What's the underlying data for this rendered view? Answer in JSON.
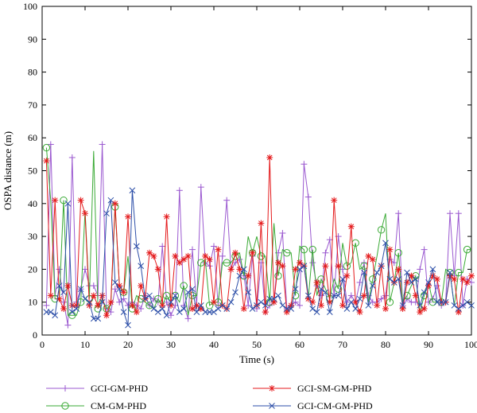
{
  "chart_data": {
    "type": "line",
    "title": "",
    "xlabel": "Time (s)",
    "ylabel": "OSPA distance (m)",
    "xlim": [
      0,
      100
    ],
    "ylim": [
      0,
      100
    ],
    "xticks": [
      0,
      10,
      20,
      30,
      40,
      50,
      60,
      70,
      80,
      90,
      100
    ],
    "yticks": [
      0,
      10,
      20,
      30,
      40,
      50,
      60,
      70,
      80,
      90,
      100
    ],
    "grid": false,
    "legend_position": "bottom",
    "series": [
      {
        "name": "GCI-GM-PHD",
        "color": "#9b59d0",
        "marker": "plus",
        "values": [
          9,
          58,
          12,
          20,
          10,
          3,
          54,
          10,
          14,
          20,
          15,
          15,
          12,
          58,
          8,
          7,
          14,
          10,
          11,
          9,
          10,
          9,
          8,
          12,
          9,
          11,
          10,
          27,
          10,
          6,
          9,
          44,
          9,
          5,
          26,
          9,
          45,
          22,
          21,
          27,
          9,
          24,
          41,
          20,
          22,
          23,
          18,
          9,
          24,
          8,
          22,
          7,
          9,
          10,
          25,
          31,
          8,
          9,
          10,
          9,
          52,
          42,
          22,
          15,
          12,
          25,
          29,
          12,
          30,
          20,
          10,
          12,
          10,
          16,
          22,
          12,
          10,
          10,
          11,
          12,
          23,
          22,
          37,
          9,
          11,
          10,
          10,
          20,
          26,
          10,
          11,
          15,
          9,
          10,
          37,
          18,
          37,
          9,
          17,
          16
        ]
      },
      {
        "name": "CM-GM-PHD",
        "color": "#3aaa35",
        "marker": "circle",
        "values": [
          57,
          41,
          11,
          11,
          41,
          6,
          6,
          6,
          10,
          38,
          11,
          56,
          8,
          11,
          8,
          9,
          39,
          15,
          13,
          24,
          8,
          12,
          11,
          10,
          9,
          8,
          11,
          9,
          12,
          10,
          12,
          10,
          15,
          6,
          12,
          12,
          22,
          23,
          9,
          10,
          10,
          22,
          22,
          22,
          24,
          25,
          18,
          30,
          25,
          30,
          24,
          24,
          10,
          34,
          18,
          26,
          25,
          25,
          12,
          27,
          26,
          11,
          26,
          12,
          17,
          14,
          11,
          17,
          14,
          28,
          21,
          22,
          28,
          20,
          21,
          10,
          17,
          24,
          32,
          37,
          10,
          16,
          25,
          10,
          12,
          15,
          18,
          7,
          12,
          16,
          10,
          10,
          10,
          20,
          19,
          9,
          19,
          19,
          26,
          26
        ]
      },
      {
        "name": "GCI-SM-GM-PHD",
        "color": "#e41a1c",
        "marker": "asterisk",
        "values": [
          53,
          12,
          41,
          11,
          8,
          15,
          9,
          9,
          41,
          37,
          9,
          12,
          9,
          12,
          6,
          10,
          40,
          15,
          13,
          36,
          9,
          7,
          15,
          11,
          25,
          24,
          20,
          9,
          36,
          9,
          24,
          22,
          23,
          24,
          8,
          9,
          8,
          24,
          23,
          10,
          26,
          9,
          8,
          20,
          25,
          20,
          8,
          18,
          25,
          9,
          34,
          7,
          54,
          10,
          22,
          21,
          7,
          9,
          20,
          22,
          21,
          11,
          10,
          16,
          9,
          21,
          10,
          41,
          21,
          9,
          18,
          33,
          10,
          7,
          12,
          24,
          23,
          9,
          21,
          8,
          26,
          16,
          20,
          8,
          16,
          18,
          12,
          7,
          8,
          15,
          18,
          17,
          10,
          10,
          18,
          17,
          7,
          17,
          16,
          18
        ]
      },
      {
        "name": "GCI-CM-GM-PHD",
        "color": "#2d4fa8",
        "marker": "x",
        "values": [
          7,
          7,
          6,
          15,
          13,
          40,
          7,
          8,
          14,
          11,
          10,
          5,
          5,
          10,
          37,
          41,
          16,
          14,
          7,
          3,
          44,
          27,
          21,
          11,
          12,
          8,
          7,
          8,
          6,
          10,
          12,
          7,
          8,
          13,
          14,
          7,
          9,
          7,
          7,
          7,
          8,
          9,
          8,
          10,
          13,
          18,
          20,
          13,
          8,
          9,
          10,
          9,
          11,
          11,
          12,
          9,
          8,
          8,
          14,
          20,
          21,
          12,
          8,
          7,
          14,
          13,
          7,
          12,
          12,
          17,
          8,
          10,
          8,
          11,
          19,
          9,
          15,
          19,
          21,
          28,
          17,
          16,
          17,
          9,
          19,
          16,
          17,
          9,
          13,
          16,
          20,
          10,
          10,
          10,
          19,
          9,
          8,
          9,
          10,
          9
        ]
      }
    ]
  }
}
